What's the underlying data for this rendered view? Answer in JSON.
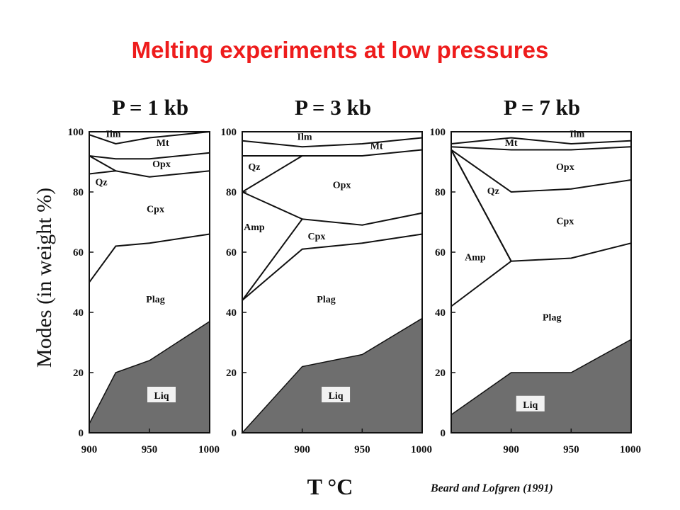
{
  "slide_title": "Melting experiments at low pressures",
  "ylabel": "Modes (in weight %)",
  "xlabel": "T °C",
  "credit": "Beard and Lofgren (1991)",
  "colors": {
    "title": "#ee1c1c",
    "liquid_fill": "#6e6e6e",
    "ink": "#111111"
  },
  "chart_data": [
    {
      "type": "area",
      "title": "P = 1 kb",
      "xlim": [
        900,
        1000
      ],
      "ylim": [
        0,
        100
      ],
      "x_ticks": [
        "900",
        "950",
        "1000"
      ],
      "y_ticks": [
        "0",
        "20",
        "40",
        "60",
        "80",
        "100"
      ],
      "series": [
        {
          "name": "Liq",
          "points": [
            [
              900,
              3
            ],
            [
              922,
              20
            ],
            [
              950,
              24
            ],
            [
              1000,
              37
            ]
          ]
        },
        {
          "name": "Plag",
          "points": [
            [
              900,
              50
            ],
            [
              922,
              62
            ],
            [
              950,
              63
            ],
            [
              1000,
              66
            ]
          ]
        },
        {
          "name": "Cpx",
          "points": [
            [
              900,
              86
            ],
            [
              922,
              87
            ],
            [
              950,
              85
            ],
            [
              1000,
              87
            ]
          ]
        },
        {
          "name": "Qz",
          "points": [
            [
              900,
              92
            ],
            [
              922,
              87
            ]
          ]
        },
        {
          "name": "Opx",
          "points": [
            [
              900,
              92
            ],
            [
              922,
              91
            ],
            [
              950,
              91
            ],
            [
              1000,
              93
            ]
          ]
        },
        {
          "name": "Mt",
          "points": [
            [
              900,
              99
            ],
            [
              922,
              96
            ],
            [
              950,
              98
            ],
            [
              1000,
              100
            ]
          ]
        },
        {
          "name": "Ilm",
          "points": [
            [
              900,
              100
            ],
            [
              1000,
              100
            ]
          ]
        }
      ]
    },
    {
      "type": "area",
      "title": "P = 3 kb",
      "xlim": [
        850,
        1000
      ],
      "ylim": [
        0,
        100
      ],
      "x_ticks": [
        "900",
        "950",
        "1000"
      ],
      "y_ticks": [
        "0",
        "20",
        "40",
        "60",
        "80",
        "100"
      ],
      "series": [
        {
          "name": "Liq",
          "points": [
            [
              850,
              0
            ],
            [
              900,
              22
            ],
            [
              950,
              26
            ],
            [
              1000,
              38
            ]
          ]
        },
        {
          "name": "Plag",
          "points": [
            [
              850,
              44
            ],
            [
              900,
              61
            ],
            [
              950,
              63
            ],
            [
              1000,
              66
            ]
          ]
        },
        {
          "name": "Cpx",
          "points": [
            [
              850,
              44
            ],
            [
              900,
              71
            ],
            [
              950,
              69
            ],
            [
              1000,
              73
            ]
          ]
        },
        {
          "name": "Amp",
          "points": [
            [
              850,
              80
            ],
            [
              900,
              71
            ]
          ]
        },
        {
          "name": "Opx",
          "points": [
            [
              850,
              80
            ],
            [
              900,
              92
            ],
            [
              950,
              92
            ],
            [
              1000,
              94
            ]
          ]
        },
        {
          "name": "Qz",
          "points": [
            [
              850,
              92
            ],
            [
              900,
              92
            ]
          ]
        },
        {
          "name": "Mt",
          "points": [
            [
              850,
              97
            ],
            [
              900,
              95
            ],
            [
              950,
              96
            ],
            [
              1000,
              98
            ]
          ]
        },
        {
          "name": "Ilm",
          "points": [
            [
              850,
              100
            ],
            [
              1000,
              100
            ]
          ]
        }
      ]
    },
    {
      "type": "area",
      "title": "P = 7 kb",
      "xlim": [
        850,
        1000
      ],
      "ylim": [
        0,
        100
      ],
      "x_ticks": [
        "900",
        "950",
        "1000"
      ],
      "y_ticks": [
        "0",
        "20",
        "40",
        "60",
        "80",
        "100"
      ],
      "series": [
        {
          "name": "Liq",
          "points": [
            [
              850,
              6
            ],
            [
              900,
              20
            ],
            [
              950,
              20
            ],
            [
              1000,
              31
            ]
          ]
        },
        {
          "name": "Plag",
          "points": [
            [
              850,
              42
            ],
            [
              900,
              57
            ],
            [
              950,
              58
            ],
            [
              1000,
              63
            ]
          ]
        },
        {
          "name": "Amp",
          "points": [
            [
              850,
              94
            ],
            [
              900,
              57
            ]
          ]
        },
        {
          "name": "Qz",
          "points": [
            [
              850,
              94
            ],
            [
              900,
              57
            ]
          ]
        },
        {
          "name": "Cpx",
          "points": [
            [
              850,
              94
            ],
            [
              900,
              80
            ],
            [
              950,
              81
            ],
            [
              1000,
              84
            ]
          ]
        },
        {
          "name": "Opx",
          "points": [
            [
              850,
              95
            ],
            [
              900,
              94
            ],
            [
              950,
              94
            ],
            [
              1000,
              95
            ]
          ]
        },
        {
          "name": "Mt",
          "points": [
            [
              850,
              96
            ],
            [
              900,
              98
            ],
            [
              950,
              96
            ],
            [
              1000,
              97
            ]
          ]
        },
        {
          "name": "Ilm",
          "points": [
            [
              850,
              100
            ],
            [
              1000,
              100
            ]
          ]
        }
      ]
    }
  ]
}
